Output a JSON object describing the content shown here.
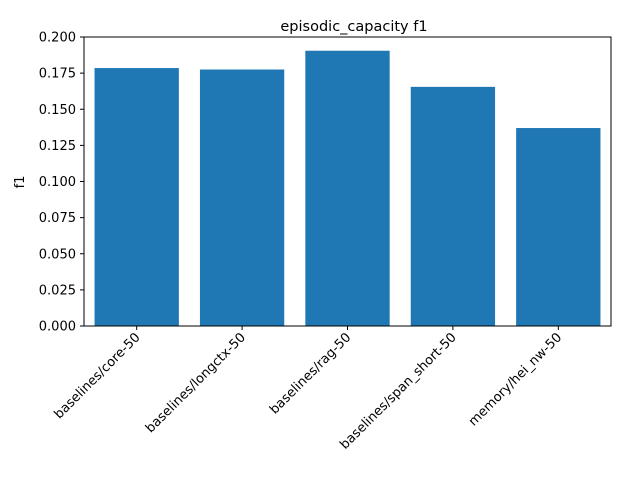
{
  "chart_data": {
    "type": "bar",
    "title": "episodic_capacity f1",
    "xlabel": "",
    "ylabel": "f1",
    "categories": [
      "baselines/core-50",
      "baselines/longctx-50",
      "baselines/rag-50",
      "baselines/span_short-50",
      "memory/hei_nw-50"
    ],
    "values": [
      0.1785,
      0.1775,
      0.1905,
      0.1655,
      0.137
    ],
    "ylim": [
      0,
      0.2
    ],
    "yticks": [
      0.0,
      0.025,
      0.05,
      0.075,
      0.1,
      0.125,
      0.15,
      0.175,
      0.2
    ],
    "ytick_labels": [
      "0.000",
      "0.025",
      "0.050",
      "0.075",
      "0.100",
      "0.125",
      "0.150",
      "0.175",
      "0.200"
    ],
    "bar_color": "#1f77b4",
    "grid": false,
    "legend": "none"
  }
}
